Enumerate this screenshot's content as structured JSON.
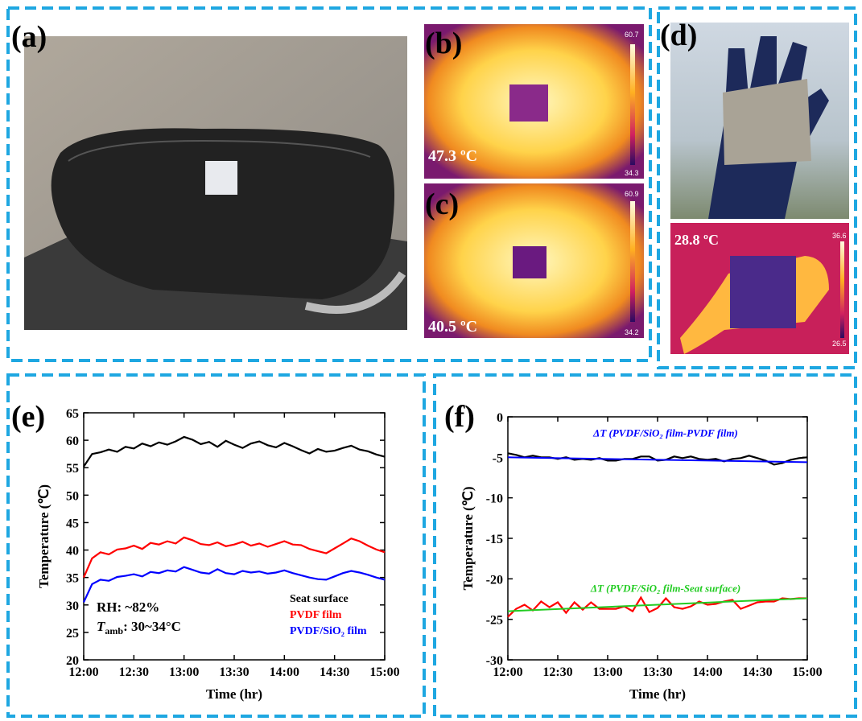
{
  "figure": {
    "panel_labels": [
      "(a)",
      "(b)",
      "(c)",
      "(d)"
    ],
    "thermal_b": {
      "temperature": "47.3 ºC",
      "scale_max": "60.7",
      "scale_min": "34.3"
    },
    "thermal_c": {
      "temperature": "40.5 ºC",
      "scale_max": "60.9",
      "scale_min": "34.2"
    },
    "thermal_d": {
      "temperature": "28.8 ºC",
      "scale_max": "36.6",
      "scale_min": "26.5"
    }
  },
  "chart_data": [
    {
      "type": "line",
      "panel_label": "(e)",
      "x_label": "Time (hr)",
      "y_label": "Temperature (℃)",
      "x": [
        "12:00",
        "12:05",
        "12:10",
        "12:15",
        "12:20",
        "12:25",
        "12:30",
        "12:35",
        "12:40",
        "12:45",
        "12:50",
        "12:55",
        "13:00",
        "13:05",
        "13:10",
        "13:15",
        "13:20",
        "13:25",
        "13:30",
        "13:35",
        "13:40",
        "13:45",
        "13:50",
        "13:55",
        "14:00",
        "14:05",
        "14:10",
        "14:15",
        "14:20",
        "14:25",
        "14:30",
        "14:35",
        "14:40",
        "14:45",
        "14:50",
        "14:55",
        "15:00"
      ],
      "xlim": [
        "12:00",
        "15:00"
      ],
      "xticks": [
        "12:00",
        "12:30",
        "13:00",
        "13:30",
        "14:00",
        "14:30",
        "15:00"
      ],
      "ylim": [
        20,
        65
      ],
      "yticks": [
        20,
        25,
        30,
        35,
        40,
        45,
        50,
        55,
        60,
        65
      ],
      "series": [
        {
          "name": "Seat surface",
          "color": "#000000",
          "values": [
            55.2,
            57.5,
            57.8,
            58.3,
            57.9,
            58.8,
            58.5,
            59.4,
            58.9,
            59.6,
            59.2,
            59.8,
            60.6,
            60.1,
            59.3,
            59.7,
            58.8,
            59.9,
            59.2,
            58.6,
            59.4,
            59.8,
            59.1,
            58.7,
            59.5,
            58.9,
            58.2,
            57.6,
            58.4,
            57.9,
            58.1,
            58.6,
            59.0,
            58.3,
            58.0,
            57.4,
            57.0
          ]
        },
        {
          "name": "PVDF film",
          "color": "#ff0000",
          "values": [
            35.0,
            38.5,
            39.6,
            39.2,
            40.1,
            40.3,
            40.8,
            40.2,
            41.3,
            41.0,
            41.6,
            41.2,
            42.3,
            41.8,
            41.1,
            40.9,
            41.4,
            40.7,
            41.0,
            41.5,
            40.8,
            41.2,
            40.6,
            41.1,
            41.6,
            41.0,
            40.9,
            40.2,
            39.8,
            39.4,
            40.3,
            41.2,
            42.1,
            41.6,
            40.8,
            40.1,
            39.6
          ]
        },
        {
          "name": "PVDF/SiO₂ film",
          "color": "#0000ff",
          "values": [
            30.5,
            33.8,
            34.6,
            34.4,
            35.1,
            35.3,
            35.6,
            35.2,
            36.0,
            35.8,
            36.3,
            36.1,
            36.9,
            36.4,
            35.9,
            35.7,
            36.5,
            35.8,
            35.6,
            36.2,
            35.9,
            36.1,
            35.7,
            35.9,
            36.3,
            35.8,
            35.4,
            35.0,
            34.7,
            34.6,
            35.2,
            35.8,
            36.2,
            35.9,
            35.5,
            35.0,
            34.6
          ]
        }
      ],
      "annotations": [
        "RH: ~82%",
        {
          "symbol": "T",
          "subscript": "amb",
          "text": ": 30~34°C"
        }
      ]
    },
    {
      "type": "line",
      "panel_label": "(f)",
      "x_label": "Time (hr)",
      "y_label": "Temperature (℃)",
      "x": [
        "12:00",
        "12:05",
        "12:10",
        "12:15",
        "12:20",
        "12:25",
        "12:30",
        "12:35",
        "12:40",
        "12:45",
        "12:50",
        "12:55",
        "13:00",
        "13:05",
        "13:10",
        "13:15",
        "13:20",
        "13:25",
        "13:30",
        "13:35",
        "13:40",
        "13:45",
        "13:50",
        "13:55",
        "14:00",
        "14:05",
        "14:10",
        "14:15",
        "14:20",
        "14:25",
        "14:30",
        "14:35",
        "14:40",
        "14:45",
        "14:50",
        "14:55",
        "15:00"
      ],
      "xlim": [
        "12:00",
        "15:00"
      ],
      "xticks": [
        "12:00",
        "12:30",
        "13:00",
        "13:30",
        "14:00",
        "14:30",
        "15:00"
      ],
      "ylim": [
        -30,
        0
      ],
      "yticks": [
        -30,
        -25,
        -20,
        -15,
        -10,
        -5,
        0
      ],
      "series": [
        {
          "color": "#000000",
          "values": [
            -4.5,
            -4.7,
            -5.0,
            -4.8,
            -5.0,
            -5.0,
            -5.2,
            -5.0,
            -5.3,
            -5.2,
            -5.3,
            -5.1,
            -5.4,
            -5.4,
            -5.2,
            -5.2,
            -4.9,
            -4.9,
            -5.4,
            -5.3,
            -4.9,
            -5.1,
            -4.9,
            -5.2,
            -5.3,
            -5.2,
            -5.5,
            -5.2,
            -5.1,
            -4.8,
            -5.1,
            -5.4,
            -5.9,
            -5.7,
            -5.3,
            -5.1,
            -5.0
          ]
        },
        {
          "name": "ΔT (PVDF/SiO₂ film-PVDF film)",
          "color": "#0000ff",
          "x": [
            "12:00",
            "15:00"
          ],
          "values": [
            -5.0,
            -5.6
          ]
        },
        {
          "color": "#ff0000",
          "values": [
            -24.7,
            -23.7,
            -23.2,
            -23.9,
            -22.8,
            -23.5,
            -22.9,
            -24.2,
            -22.9,
            -23.8,
            -22.9,
            -23.7,
            -23.7,
            -23.7,
            -23.4,
            -24.0,
            -22.3,
            -24.1,
            -23.6,
            -22.4,
            -23.5,
            -23.7,
            -23.4,
            -22.8,
            -23.2,
            -23.1,
            -22.8,
            -22.6,
            -23.7,
            -23.3,
            -22.9,
            -22.8,
            -22.8,
            -22.4,
            -22.5,
            -22.4,
            -22.4
          ]
        },
        {
          "name": "ΔT (PVDF/SiO₂ film-Seat surface)",
          "color": "#22cc22",
          "x": [
            "12:00",
            "15:00"
          ],
          "values": [
            -24.0,
            -22.4
          ]
        }
      ]
    }
  ]
}
